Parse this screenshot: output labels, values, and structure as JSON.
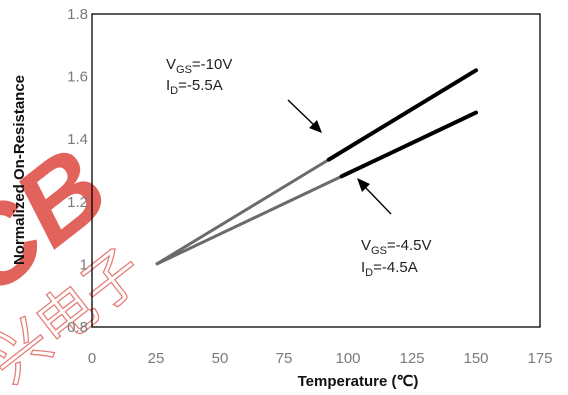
{
  "chart_data": {
    "type": "line",
    "title": "",
    "xlabel": "Temperature (℃)",
    "ylabel": "Normalized On-Resistance",
    "xlim": [
      0,
      175
    ],
    "ylim": [
      0.8,
      1.8
    ],
    "x_ticks": [
      "0",
      "25",
      "50",
      "75",
      "100",
      "125",
      "150",
      "175"
    ],
    "y_ticks": [
      "0.8",
      "1",
      "1.2",
      "1.4",
      "1.6",
      "1.8"
    ],
    "grid": false,
    "series": [
      {
        "x": [
          25,
          150
        ],
        "y": [
          1.0,
          1.62
        ],
        "color_light": "#6b6b6b",
        "color_dark": "#000000"
      },
      {
        "x": [
          25,
          150
        ],
        "y": [
          1.0,
          1.485
        ],
        "color_light": "#6b6b6b",
        "color_dark": "#000000"
      }
    ],
    "annotations": [
      {
        "line1_main": "V",
        "line1_sub": "GS",
        "line1_rest": "=-10V",
        "line2_main": "I",
        "line2_sub": "D",
        "line2_rest": "=-5.5A"
      },
      {
        "line1_main": "V",
        "line1_sub": "GS",
        "line1_rest": "=-4.5V",
        "line2_main": "I",
        "line2_sub": "D",
        "line2_rest": "=-4.5A"
      }
    ]
  },
  "watermark": {
    "text_latin": "CB",
    "text_cjk": "兴电子",
    "color": "#d9342b"
  }
}
